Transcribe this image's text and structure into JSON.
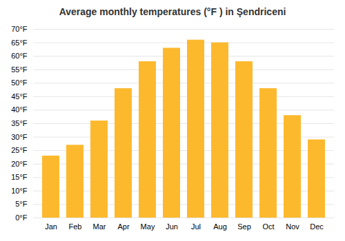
{
  "chart_data": {
    "type": "bar",
    "title": "Average monthly temperatures (°F ) in Şendriceni",
    "categories": [
      "Jan",
      "Feb",
      "Mar",
      "Apr",
      "May",
      "Jun",
      "Jul",
      "Aug",
      "Sep",
      "Oct",
      "Nov",
      "Dec"
    ],
    "values": [
      23,
      27,
      36,
      48,
      58,
      63,
      66,
      65,
      58,
      48,
      38,
      29
    ],
    "color": "#FDB92E",
    "ylim": [
      0,
      70
    ],
    "yticks": [
      {
        "value": 0,
        "label": "0°F"
      },
      {
        "value": 5,
        "label": "5°F"
      },
      {
        "value": 10,
        "label": "10°F"
      },
      {
        "value": 15,
        "label": "15°F"
      },
      {
        "value": 20,
        "label": "20°F"
      },
      {
        "value": 25,
        "label": "25°F"
      },
      {
        "value": 30,
        "label": "30°F"
      },
      {
        "value": 35,
        "label": "35°F"
      },
      {
        "value": 40,
        "label": "40°F"
      },
      {
        "value": 45,
        "label": "45°F"
      },
      {
        "value": 50,
        "label": "50°F"
      },
      {
        "value": 55,
        "label": "55°F"
      },
      {
        "value": 60,
        "label": "60°F"
      },
      {
        "value": 65,
        "label": "65°F"
      },
      {
        "value": 70,
        "label": "70°F"
      }
    ],
    "grid": true
  }
}
